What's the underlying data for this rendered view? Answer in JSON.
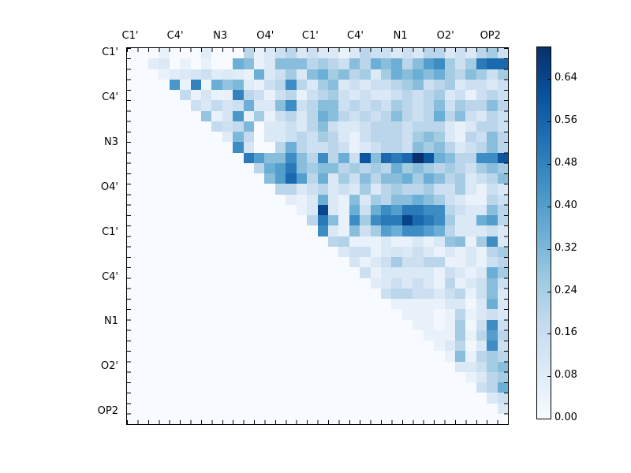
{
  "chart_data": {
    "type": "heatmap",
    "title": "",
    "description": "Upper-triangular pairwise matrix heatmap with Blues colormap and vertical colorbar",
    "x_axis": {
      "position": "top",
      "labels": [
        "C1'",
        "C4'",
        "N3",
        "O4'",
        "C1'",
        "C4'",
        "N1",
        "O2'",
        "OP2"
      ]
    },
    "y_axis": {
      "position": "left",
      "labels": [
        "C1'",
        "C4'",
        "N3",
        "O4'",
        "C1'",
        "C4'",
        "N1",
        "O2'",
        "OP2"
      ]
    },
    "grid_size": 36,
    "vmin": 0.0,
    "vmax": 0.7,
    "lower_triangle_fill": 0.0,
    "colormap": {
      "name": "Blues",
      "stops": [
        "#f7fbff",
        "#deebf7",
        "#c6dbef",
        "#9ecae1",
        "#6baed6",
        "#4292c6",
        "#2171b5",
        "#08519c",
        "#08306b"
      ]
    },
    "colorbar": {
      "tick_labels": [
        "0.64",
        "0.56",
        "0.48",
        "0.40",
        "0.32",
        "0.24",
        "0.16",
        "0.08",
        "0.00"
      ],
      "tick_values": [
        0.64,
        0.56,
        0.48,
        0.4,
        0.32,
        0.24,
        0.16,
        0.08,
        0.0
      ]
    },
    "upper_triangle_rows": [
      [
        0,
        0,
        0.05,
        0,
        0,
        0,
        0.08,
        0,
        0,
        0,
        0.2,
        0.05,
        0.1,
        0.15,
        0.2,
        0.1,
        0.15,
        0.1,
        0.1,
        0.05,
        0.1,
        0.2,
        0.15,
        0.15,
        0.1,
        0.15,
        0.1,
        0.2,
        0.2,
        0.1,
        0.15,
        0.1,
        0.2,
        0.25,
        0.15
      ],
      [
        0.08,
        0.1,
        0,
        0.05,
        0,
        0.05,
        0,
        0,
        0.35,
        0.3,
        0.05,
        0.1,
        0.3,
        0.3,
        0.3,
        0.2,
        0.25,
        0.2,
        0.15,
        0.3,
        0.2,
        0.35,
        0.3,
        0.35,
        0.2,
        0.3,
        0.4,
        0.45,
        0.25,
        0.15,
        0.25,
        0.5,
        0.55,
        0.55
      ],
      [
        0.05,
        0.08,
        0.1,
        0.12,
        0.15,
        0.08,
        0.1,
        0.08,
        0.05,
        0.35,
        0.1,
        0.15,
        0.25,
        0.1,
        0.3,
        0.35,
        0.25,
        0.3,
        0.2,
        0.25,
        0.1,
        0.25,
        0.35,
        0.3,
        0.35,
        0.3,
        0.35,
        0.25,
        0.2,
        0.3,
        0.25,
        0.15,
        0.25
      ],
      [
        0.42,
        0.05,
        0.48,
        0.03,
        0.35,
        0.28,
        0.32,
        0.08,
        0.05,
        0.15,
        0.2,
        0.45,
        0.2,
        0.1,
        0.25,
        0.3,
        0.1,
        0.15,
        0.1,
        0.15,
        0.15,
        0.2,
        0.25,
        0.3,
        0.15,
        0.2,
        0.25,
        0.1,
        0.15,
        0.15,
        0.1,
        0.15
      ],
      [
        0.18,
        0.05,
        0.12,
        0.05,
        0.05,
        0.48,
        0.2,
        0.15,
        0.05,
        0.15,
        0.2,
        0.05,
        0.15,
        0.2,
        0.25,
        0.15,
        0.1,
        0.15,
        0.1,
        0.1,
        0.15,
        0.2,
        0.15,
        0.2,
        0.25,
        0.1,
        0.15,
        0.05,
        0.15,
        0.2,
        0.15
      ],
      [
        0.15,
        0.1,
        0.18,
        0.12,
        0.15,
        0.35,
        0.1,
        0.1,
        0.3,
        0.45,
        0.15,
        0.2,
        0.3,
        0.3,
        0.15,
        0.2,
        0.15,
        0.2,
        0.15,
        0.25,
        0.2,
        0.15,
        0.2,
        0.3,
        0.15,
        0.25,
        0.2,
        0.2,
        0.3,
        0.2
      ],
      [
        0.28,
        0.05,
        0.12,
        0.42,
        0.05,
        0.25,
        0.05,
        0.15,
        0.2,
        0.1,
        0.2,
        0.35,
        0.3,
        0.2,
        0.15,
        0.2,
        0.15,
        0.2,
        0.3,
        0.2,
        0.15,
        0.2,
        0.35,
        0.2,
        0.3,
        0.15,
        0.1,
        0.2,
        0.15
      ],
      [
        0.18,
        0.15,
        0.18,
        0.32,
        0,
        0.1,
        0.1,
        0.15,
        0.1,
        0.2,
        0.3,
        0.15,
        0.1,
        0.1,
        0.15,
        0.2,
        0.2,
        0.2,
        0.15,
        0.2,
        0.2,
        0.2,
        0.1,
        0.05,
        0.1,
        0.2,
        0.2,
        0.15
      ],
      [
        0.08,
        0.32,
        0.18,
        0,
        0.1,
        0.1,
        0.15,
        0.2,
        0.15,
        0.25,
        0.2,
        0.1,
        0.05,
        0.15,
        0.2,
        0.2,
        0.2,
        0.15,
        0.25,
        0.3,
        0.25,
        0.1,
        0.05,
        0.2,
        0.15,
        0.3,
        0.2
      ],
      [
        0.45,
        0.12,
        0,
        0,
        0.2,
        0.35,
        0.2,
        0.15,
        0.15,
        0.2,
        0.15,
        0.05,
        0.1,
        0.15,
        0.2,
        0.2,
        0.15,
        0.3,
        0.25,
        0.3,
        0.2,
        0.1,
        0.15,
        0.2,
        0.3,
        0.2
      ],
      [
        0.5,
        0.4,
        0.3,
        0.3,
        0.45,
        0.3,
        0.2,
        0.45,
        0.2,
        0.35,
        0.15,
        0.6,
        0.3,
        0.55,
        0.5,
        0.55,
        0.7,
        0.6,
        0.35,
        0.3,
        0.2,
        0.2,
        0.45,
        0.45,
        0.6
      ],
      [
        0.2,
        0.35,
        0.4,
        0.5,
        0.3,
        0.25,
        0.3,
        0.3,
        0.2,
        0.25,
        0.2,
        0.25,
        0.2,
        0.35,
        0.25,
        0.3,
        0.25,
        0.2,
        0.25,
        0.2,
        0.15,
        0.25,
        0.3,
        0.25
      ],
      [
        0.3,
        0.4,
        0.55,
        0.4,
        0.2,
        0.35,
        0.1,
        0.25,
        0.15,
        0.3,
        0.2,
        0.3,
        0.3,
        0.35,
        0.25,
        0.35,
        0.3,
        0.2,
        0.25,
        0.1,
        0.15,
        0.2,
        0.3
      ],
      [
        0.2,
        0.2,
        0.1,
        0.15,
        0.2,
        0.1,
        0.15,
        0.1,
        0.25,
        0.1,
        0.2,
        0.25,
        0.2,
        0.2,
        0.25,
        0.15,
        0.15,
        0.25,
        0.1,
        0.05,
        0.15,
        0.1
      ],
      [
        0.07,
        0.05,
        0.1,
        0.35,
        0.1,
        0.05,
        0.3,
        0.1,
        0.25,
        0.2,
        0.3,
        0.3,
        0.35,
        0.3,
        0.25,
        0.15,
        0.1,
        0.05,
        0.05,
        0.2,
        0.15
      ],
      [
        0.05,
        0.1,
        0.64,
        0.1,
        0.05,
        0.35,
        0.15,
        0.35,
        0.45,
        0.4,
        0.5,
        0.5,
        0.45,
        0.45,
        0.2,
        0.15,
        0.1,
        0.1,
        0.3,
        0.2
      ],
      [
        0.2,
        0.5,
        0.3,
        0.05,
        0.45,
        0.25,
        0.45,
        0.5,
        0.5,
        0.65,
        0.55,
        0.5,
        0.45,
        0.25,
        0.1,
        0.1,
        0.35,
        0.4,
        0.2
      ],
      [
        0.45,
        0.1,
        0.05,
        0.3,
        0.15,
        0.25,
        0.4,
        0.35,
        0.45,
        0.45,
        0.4,
        0.35,
        0.2,
        0.1,
        0.1,
        0.1,
        0.15,
        0.1
      ],
      [
        0.2,
        0.22,
        0.05,
        0.05,
        0.05,
        0.1,
        0.05,
        0.05,
        0.1,
        0.05,
        0.1,
        0.28,
        0.3,
        0.05,
        0.25,
        0.45,
        0.1
      ],
      [
        0.1,
        0.15,
        0.15,
        0.05,
        0.1,
        0.12,
        0.1,
        0.15,
        0.1,
        0.05,
        0.1,
        0.05,
        0.1,
        0.05,
        0.2,
        0.25
      ],
      [
        0.12,
        0.05,
        0.1,
        0.15,
        0.25,
        0.15,
        0.15,
        0.2,
        0.2,
        0.05,
        0.05,
        0.1,
        0.05,
        0.15,
        0.2
      ],
      [
        0.15,
        0.05,
        0.1,
        0.1,
        0.1,
        0.1,
        0.1,
        0.05,
        0.15,
        0.1,
        0.05,
        0.1,
        0.35,
        0.25
      ],
      [
        0.08,
        0.1,
        0.15,
        0.1,
        0.15,
        0.1,
        0.05,
        0.2,
        0.05,
        0.1,
        0.15,
        0.3,
        0.15
      ],
      [
        0.15,
        0.2,
        0.2,
        0.15,
        0.15,
        0.1,
        0.15,
        0.2,
        0.05,
        0.15,
        0.3,
        0.1
      ],
      [
        0.05,
        0.05,
        0.05,
        0.05,
        0.05,
        0.1,
        0.1,
        0.02,
        0.1,
        0.35,
        0.1
      ],
      [
        0.05,
        0.05,
        0.05,
        0.02,
        0.05,
        0.2,
        0.05,
        0.1,
        0.15,
        0.1
      ],
      [
        0.05,
        0.05,
        0.02,
        0.05,
        0.25,
        0.02,
        0.15,
        0.45,
        0.15
      ],
      [
        0.05,
        0.05,
        0.05,
        0.25,
        0.05,
        0.2,
        0.4,
        0.2
      ],
      [
        0.05,
        0.1,
        0.2,
        0.02,
        0.1,
        0.45,
        0.15
      ],
      [
        0.05,
        0.3,
        0.05,
        0.2,
        0.25,
        0.2
      ],
      [
        0.1,
        0.1,
        0.15,
        0.25,
        0.3
      ],
      [
        0.05,
        0.1,
        0.2,
        0.25
      ],
      [
        0.15,
        0.2,
        0.35
      ],
      [
        0.1,
        0.15
      ],
      [
        0.1
      ],
      []
    ]
  }
}
